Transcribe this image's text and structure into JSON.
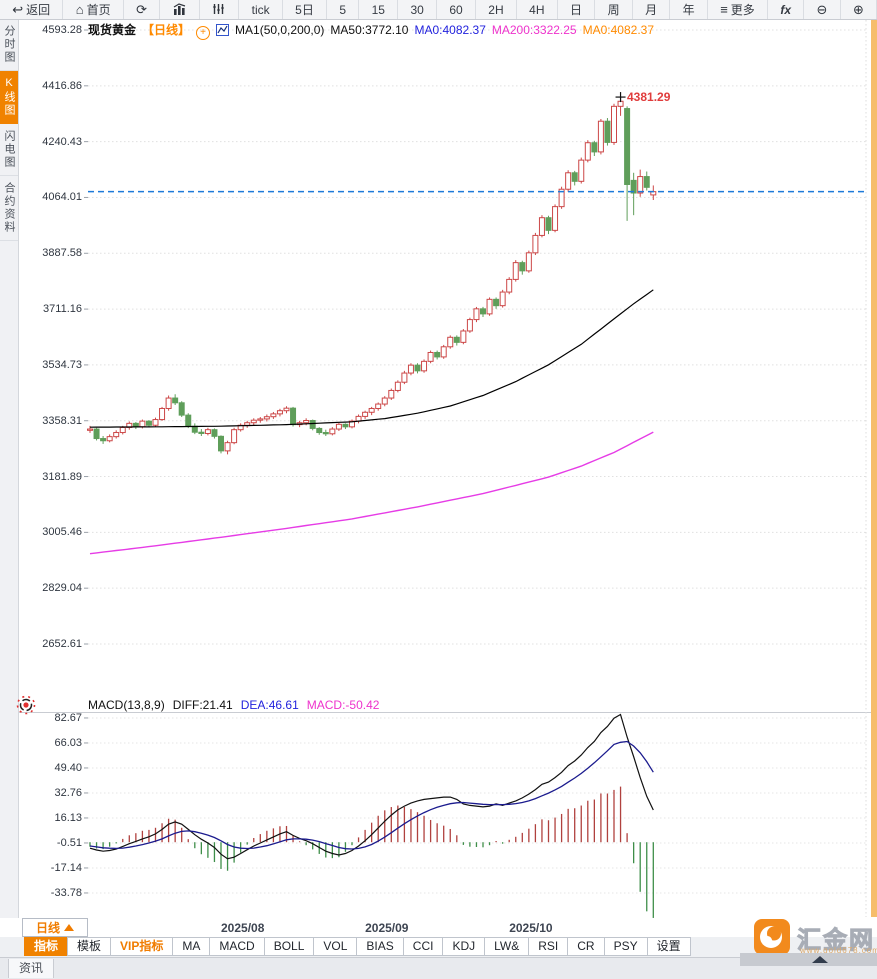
{
  "accent_colors": {
    "orange": "#f08200",
    "toolbar_bg": "#f3f4f6",
    "grid": "#e0e0e0"
  },
  "toolbar": {
    "items": [
      {
        "id": "back",
        "label": "返回",
        "icon": "back-arrow-icon"
      },
      {
        "id": "home",
        "label": "首页",
        "icon": "home-icon"
      },
      {
        "id": "refresh",
        "label": "",
        "icon": "refresh-icon"
      },
      {
        "id": "chart-style",
        "label": "",
        "icon": "bar-chart-icon"
      },
      {
        "id": "volume-style",
        "label": "",
        "icon": "volume-bars-icon"
      },
      {
        "id": "tick",
        "label": "tick"
      },
      {
        "id": "range-5d",
        "label": "5日"
      },
      {
        "id": "period-5",
        "label": "5"
      },
      {
        "id": "period-15",
        "label": "15"
      },
      {
        "id": "period-30",
        "label": "30"
      },
      {
        "id": "period-60",
        "label": "60"
      },
      {
        "id": "period-2h",
        "label": "2H"
      },
      {
        "id": "period-4h",
        "label": "4H"
      },
      {
        "id": "period-day",
        "label": "日"
      },
      {
        "id": "period-week",
        "label": "周"
      },
      {
        "id": "period-month",
        "label": "月"
      },
      {
        "id": "period-year",
        "label": "年"
      },
      {
        "id": "more",
        "label": "更多",
        "icon": "menu-icon"
      },
      {
        "id": "indicator-fx",
        "label": "fx"
      },
      {
        "id": "zoom-out",
        "label": "",
        "icon": "zoom-out-icon"
      },
      {
        "id": "zoom-in",
        "label": "",
        "icon": "zoom-in-icon"
      }
    ]
  },
  "sidebar": {
    "tabs": [
      {
        "label": "分时图",
        "active": false
      },
      {
        "label": "K线图",
        "active": true
      },
      {
        "label": "闪电图",
        "active": false
      },
      {
        "label": "合约资料",
        "active": false
      }
    ]
  },
  "price_header": {
    "symbol": "现货黄金",
    "period": "【日线】",
    "ma_settings": "MA1(50,0,200,0)",
    "ma50": "MA50:3772.10",
    "ma0_blue": "MA0:4082.37",
    "ma200": "MA200:3322.25",
    "ma0_orange": "MA0:4082.37"
  },
  "macd_header": {
    "title": "MACD(13,8,9)",
    "diff": "DIFF:21.41",
    "dea": "DEA:46.61",
    "macd": "MACD:-50.42"
  },
  "footer": {
    "period_selector": "日线",
    "news_tab": "资讯",
    "tabs": [
      "指标",
      "模板",
      "VIP指标",
      "MA",
      "MACD",
      "BOLL",
      "VOL",
      "BIAS",
      "CCI",
      "KDJ",
      "LW&",
      "RSI",
      "CR",
      "PSY",
      "设置"
    ],
    "active_tab": "指标",
    "vip_tab": "VIP指标"
  },
  "logo": {
    "name": "汇金网",
    "url": "www.gold678.com"
  },
  "chart_data": {
    "type": "candlestick",
    "title": "现货黄金 日线",
    "legend_position": "top-left",
    "grid": "dotted-horizontal",
    "y_axis_labels": [
      4593.28,
      4416.86,
      4240.43,
      4064.01,
      3887.58,
      3711.16,
      3534.73,
      3358.31,
      3181.89,
      3005.46,
      2829.04,
      2652.61
    ],
    "ylim": [
      2652.61,
      4593.28
    ],
    "x_axis_labels": [
      {
        "label": "2025/08",
        "candle_index": 20
      },
      {
        "label": "2025/09",
        "candle_index": 42
      },
      {
        "label": "2025/10",
        "candle_index": 64
      }
    ],
    "annotation": {
      "text": "4381.29",
      "price": 4381.29,
      "candle_index": 81
    },
    "last_price_line": 4082.37,
    "colors": {
      "up": "#cc4747",
      "down": "#5f9e5a",
      "ma50": "#000000",
      "ma200": "#e63ce6",
      "diff": "#111111",
      "dea": "#1b1b8e",
      "hist_up": "#b0413e",
      "hist_down": "#3e8e49",
      "last_price_line": "#1d7ad9",
      "annotation": "#e03c3c"
    },
    "candles": [
      [
        3328,
        3342,
        3320,
        3332
      ],
      [
        3332,
        3336,
        3296,
        3302
      ],
      [
        3302,
        3310,
        3285,
        3295
      ],
      [
        3295,
        3315,
        3290,
        3308
      ],
      [
        3308,
        3328,
        3302,
        3321
      ],
      [
        3321,
        3342,
        3315,
        3337
      ],
      [
        3337,
        3356,
        3330,
        3350
      ],
      [
        3350,
        3354,
        3332,
        3339
      ],
      [
        3339,
        3362,
        3334,
        3357
      ],
      [
        3357,
        3360,
        3338,
        3344
      ],
      [
        3344,
        3368,
        3340,
        3362
      ],
      [
        3362,
        3402,
        3358,
        3397
      ],
      [
        3397,
        3438,
        3390,
        3430
      ],
      [
        3430,
        3442,
        3408,
        3415
      ],
      [
        3415,
        3420,
        3370,
        3376
      ],
      [
        3376,
        3382,
        3335,
        3341
      ],
      [
        3341,
        3350,
        3316,
        3322
      ],
      [
        3322,
        3332,
        3310,
        3318
      ],
      [
        3318,
        3336,
        3312,
        3330
      ],
      [
        3330,
        3334,
        3302,
        3309
      ],
      [
        3309,
        3312,
        3255,
        3263
      ],
      [
        3263,
        3295,
        3252,
        3289
      ],
      [
        3289,
        3336,
        3284,
        3330
      ],
      [
        3330,
        3350,
        3324,
        3344
      ],
      [
        3344,
        3358,
        3336,
        3352
      ],
      [
        3352,
        3366,
        3344,
        3360
      ],
      [
        3360,
        3370,
        3352,
        3364
      ],
      [
        3364,
        3378,
        3356,
        3371
      ],
      [
        3371,
        3386,
        3364,
        3380
      ],
      [
        3380,
        3396,
        3372,
        3390
      ],
      [
        3390,
        3404,
        3382,
        3398
      ],
      [
        3398,
        3402,
        3340,
        3346
      ],
      [
        3346,
        3358,
        3338,
        3352
      ],
      [
        3352,
        3366,
        3344,
        3359
      ],
      [
        3359,
        3362,
        3328,
        3334
      ],
      [
        3334,
        3338,
        3314,
        3321
      ],
      [
        3321,
        3330,
        3310,
        3317
      ],
      [
        3317,
        3338,
        3312,
        3332
      ],
      [
        3332,
        3352,
        3326,
        3347
      ],
      [
        3347,
        3350,
        3332,
        3339
      ],
      [
        3339,
        3362,
        3334,
        3357
      ],
      [
        3357,
        3378,
        3350,
        3372
      ],
      [
        3372,
        3390,
        3364,
        3385
      ],
      [
        3385,
        3402,
        3376,
        3397
      ],
      [
        3397,
        3416,
        3390,
        3411
      ],
      [
        3411,
        3436,
        3404,
        3430
      ],
      [
        3430,
        3460,
        3424,
        3454
      ],
      [
        3454,
        3486,
        3448,
        3480
      ],
      [
        3480,
        3516,
        3474,
        3509
      ],
      [
        3509,
        3540,
        3502,
        3534
      ],
      [
        3534,
        3540,
        3508,
        3516
      ],
      [
        3516,
        3552,
        3510,
        3546
      ],
      [
        3546,
        3580,
        3540,
        3574
      ],
      [
        3574,
        3580,
        3552,
        3560
      ],
      [
        3560,
        3598,
        3554,
        3592
      ],
      [
        3592,
        3628,
        3586,
        3622
      ],
      [
        3622,
        3628,
        3596,
        3606
      ],
      [
        3606,
        3648,
        3600,
        3642
      ],
      [
        3642,
        3684,
        3636,
        3678
      ],
      [
        3678,
        3718,
        3670,
        3712
      ],
      [
        3712,
        3718,
        3686,
        3696
      ],
      [
        3696,
        3748,
        3690,
        3742
      ],
      [
        3742,
        3748,
        3712,
        3722
      ],
      [
        3722,
        3772,
        3716,
        3765
      ],
      [
        3765,
        3812,
        3758,
        3805
      ],
      [
        3805,
        3866,
        3798,
        3858
      ],
      [
        3858,
        3864,
        3820,
        3832
      ],
      [
        3832,
        3896,
        3826,
        3889
      ],
      [
        3889,
        3952,
        3882,
        3944
      ],
      [
        3944,
        4008,
        3938,
        4000
      ],
      [
        4000,
        4006,
        3948,
        3960
      ],
      [
        3960,
        4042,
        3954,
        4035
      ],
      [
        4035,
        4098,
        4028,
        4090
      ],
      [
        4090,
        4150,
        4082,
        4142
      ],
      [
        4142,
        4148,
        4102,
        4115
      ],
      [
        4115,
        4190,
        4108,
        4182
      ],
      [
        4182,
        4245,
        4175,
        4237
      ],
      [
        4237,
        4243,
        4195,
        4208
      ],
      [
        4208,
        4312,
        4200,
        4305
      ],
      [
        4305,
        4315,
        4228,
        4238
      ],
      [
        4238,
        4360,
        4230,
        4352
      ],
      [
        4352,
        4381.29,
        4322,
        4368
      ],
      [
        4345,
        4352,
        3990,
        4105
      ],
      [
        4118,
        4142,
        4008,
        4078
      ],
      [
        4078,
        4152,
        4066,
        4130
      ],
      [
        4130,
        4146,
        4086,
        4096
      ],
      [
        4072,
        4102,
        4056,
        4082.37
      ]
    ],
    "ma50": {
      "x": [
        0,
        10,
        20,
        30,
        40,
        45,
        50,
        55,
        60,
        65,
        70,
        75,
        80,
        83,
        86
      ],
      "values": [
        3338,
        3339,
        3341,
        3346,
        3355,
        3365,
        3382,
        3405,
        3438,
        3482,
        3535,
        3600,
        3680,
        3728,
        3772.1
      ]
    },
    "ma200": {
      "x": [
        0,
        10,
        20,
        30,
        40,
        50,
        60,
        70,
        75,
        80,
        86
      ],
      "values": [
        2938,
        2963,
        2990,
        3018,
        3048,
        3086,
        3128,
        3180,
        3215,
        3258,
        3322.25
      ]
    },
    "macd": {
      "params": "13,8,9",
      "y_axis_labels": [
        82.67,
        66.03,
        49.4,
        32.76,
        16.13,
        -0.51,
        -17.14,
        -33.78
      ],
      "hist_formula": "2*(diff-dea)",
      "diff": [
        -4.0,
        -5.2,
        -6.0,
        -5.5,
        -4.5,
        -2.8,
        -1.0,
        0.5,
        2.2,
        3.6,
        5.5,
        8.5,
        12.0,
        13.5,
        12.0,
        8.5,
        5.0,
        2.0,
        -0.5,
        -3.5,
        -8.0,
        -11.0,
        -10.0,
        -7.5,
        -5.0,
        -2.5,
        -0.5,
        1.5,
        3.5,
        5.5,
        7.0,
        4.5,
        2.5,
        1.0,
        -1.0,
        -3.5,
        -6.0,
        -7.5,
        -8.5,
        -7.5,
        -5.5,
        -2.5,
        1.0,
        5.0,
        9.5,
        14.0,
        18.0,
        21.5,
        24.0,
        26.0,
        27.5,
        28.5,
        29.0,
        29.5,
        30.0,
        30.0,
        28.5,
        25.5,
        24.5,
        24.0,
        23.5,
        24.0,
        25.5,
        24.5,
        26.0,
        27.5,
        29.5,
        32.0,
        35.0,
        38.5,
        40.0,
        43.0,
        46.5,
        51.0,
        54.0,
        58.0,
        63.0,
        67.0,
        73.0,
        77.0,
        82.5,
        85.0,
        70.0,
        57.0,
        43.0,
        30.5,
        21.41
      ],
      "dea": [
        -2.5,
        -3.1,
        -3.7,
        -4.0,
        -4.1,
        -3.9,
        -3.3,
        -2.5,
        -1.6,
        -0.5,
        0.7,
        2.2,
        4.2,
        6.0,
        7.2,
        7.5,
        7.0,
        6.0,
        4.7,
        3.1,
        0.9,
        -1.5,
        -3.2,
        -4.0,
        -4.2,
        -3.9,
        -3.2,
        -2.3,
        -1.1,
        0.2,
        1.6,
        2.2,
        2.2,
        2.0,
        1.4,
        0.4,
        -0.9,
        -2.2,
        -3.5,
        -4.3,
        -4.5,
        -4.1,
        -3.1,
        -1.5,
        0.7,
        3.4,
        6.3,
        9.3,
        12.3,
        15.0,
        17.5,
        19.7,
        21.6,
        23.2,
        24.5,
        25.6,
        26.2,
        26.4,
        26.0,
        25.6,
        25.2,
        25.0,
        25.1,
        25.0,
        25.2,
        25.7,
        26.4,
        27.5,
        29.0,
        30.9,
        32.7,
        34.8,
        37.1,
        39.9,
        42.7,
        45.8,
        49.2,
        52.8,
        56.8,
        60.8,
        65.1,
        66.5,
        67.0,
        64.0,
        59.5,
        53.5,
        46.61
      ]
    }
  }
}
